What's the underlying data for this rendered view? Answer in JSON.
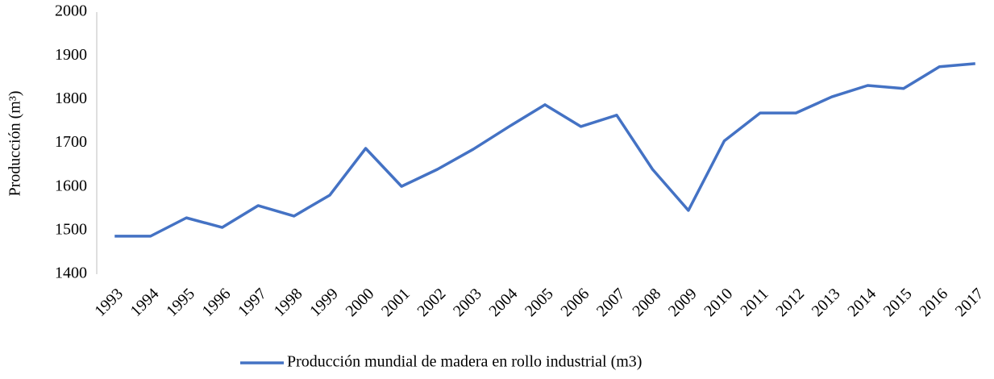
{
  "chart_data": {
    "type": "line",
    "y_label": "Producción (m³)",
    "categories": [
      "1993",
      "1994",
      "1995",
      "1996",
      "1997",
      "1998",
      "1999",
      "2000",
      "2001",
      "2002",
      "2003",
      "2004",
      "2005",
      "2006",
      "2007",
      "2008",
      "2009",
      "2010",
      "2011",
      "2012",
      "2013",
      "2014",
      "2015",
      "2016",
      "2017"
    ],
    "series": [
      {
        "name": "Producción mundial de madera en rollo industrial (m3)",
        "color": "#4472c4",
        "values": [
          1487,
          1487,
          1529,
          1507,
          1557,
          1533,
          1581,
          1688,
          1601,
          1640,
          1686,
          1738,
          1788,
          1738,
          1764,
          1640,
          1546,
          1705,
          1769,
          1769,
          1806,
          1832,
          1825,
          1875,
          1882
        ]
      }
    ],
    "ylim": [
      1400,
      2000
    ],
    "yticks": [
      1400,
      1500,
      1600,
      1700,
      1800,
      1900,
      2000
    ],
    "grid": false,
    "legend": "bottom"
  }
}
